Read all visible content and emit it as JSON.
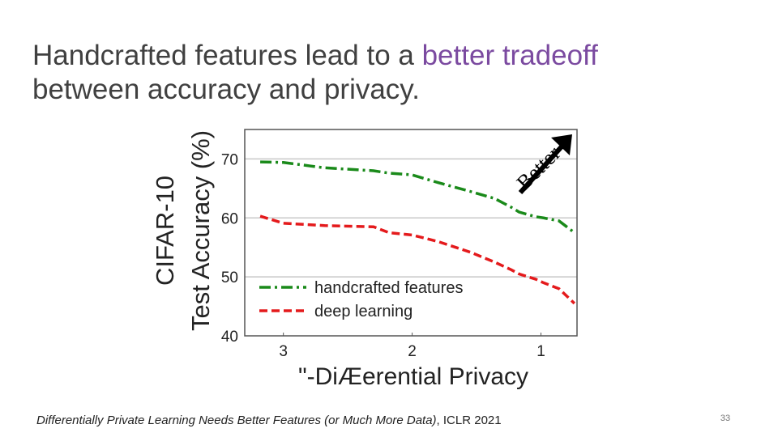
{
  "slide": {
    "title": [
      "Handcrafted features lead to a ",
      "better tradeoff",
      "between accuracy and privacy."
    ],
    "citation": [
      "Differentially Private Learning Needs Better Features (or Much More Data)",
      ", ICLR 2021"
    ],
    "page_number": "33"
  },
  "chart_data": {
    "type": "line",
    "y_label": [
      "CIFAR-10",
      "Test Accuracy (%)"
    ],
    "x_label": "\"-DiÆerential Privacy",
    "annotation": "Better",
    "x": [
      3.18,
      3.0,
      2.68,
      2.3,
      2.18,
      2.0,
      1.8,
      1.55,
      1.36,
      1.23,
      1.17,
      1.04,
      0.98,
      0.86,
      0.74
    ],
    "series": [
      {
        "name": "handcrafted features",
        "color": "#1a8a1a",
        "values": [
          69.5,
          69.4,
          68.5,
          68.0,
          67.6,
          67.3,
          66.0,
          64.5,
          63.3,
          61.8,
          61.0,
          60.2,
          60.0,
          59.5,
          57.5
        ]
      },
      {
        "name": "deep learning",
        "color": "#e41a1c",
        "values": [
          60.3,
          59.1,
          58.7,
          58.5,
          57.5,
          57.1,
          56.0,
          54.2,
          52.5,
          51.2,
          50.5,
          49.6,
          49.0,
          48.0,
          45.5
        ]
      }
    ],
    "xlim": [
      3.3,
      0.72
    ],
    "xticks": [
      3,
      2,
      1
    ],
    "ylim": [
      40,
      75
    ],
    "yticks": [
      40,
      50,
      60,
      70
    ],
    "grid": true,
    "legend": "lower left"
  }
}
